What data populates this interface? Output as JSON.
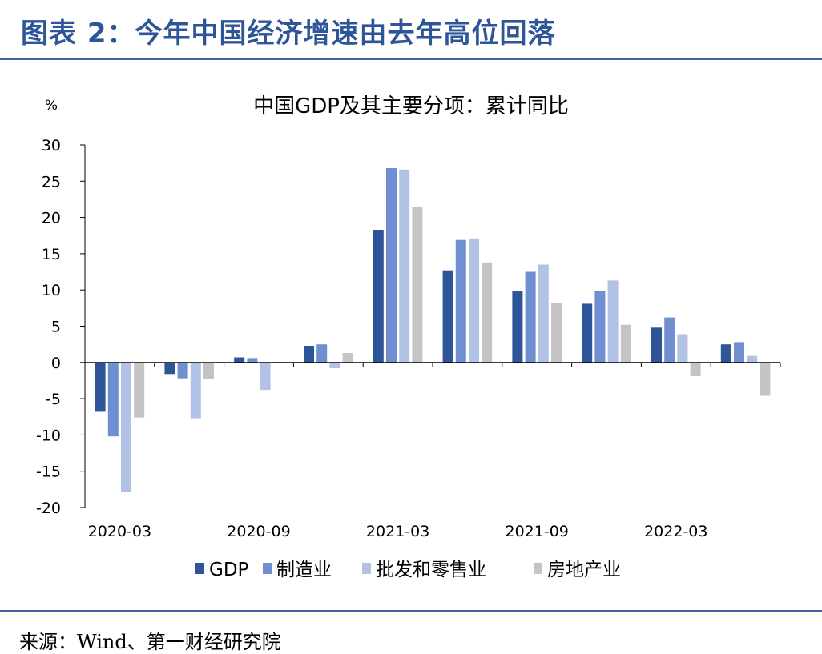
{
  "header": {
    "figure_title": "图表 2：今年中国经济增速由去年高位回落"
  },
  "footer": {
    "source": "来源：Wind、第一财经研究院"
  },
  "chart_data": {
    "type": "bar",
    "title": "中国GDP及其主要分项：累计同比",
    "ylabel": "%",
    "xlabel": "",
    "ylim": [
      -20,
      30
    ],
    "yticks": [
      30,
      25,
      20,
      15,
      10,
      5,
      0,
      -5,
      -10,
      -15,
      -20
    ],
    "grid": false,
    "legend_position": "bottom",
    "categories": [
      "2020-03",
      "2020-06",
      "2020-09",
      "2020-12",
      "2021-03",
      "2021-06",
      "2021-09",
      "2021-12",
      "2022-03",
      "2022-06"
    ],
    "x_tick_labels": [
      "2020-03",
      "2020-09",
      "2021-03",
      "2021-09",
      "2022-03"
    ],
    "series": [
      {
        "name": "GDP",
        "color": "#2e5597",
        "values": [
          -6.8,
          -1.6,
          0.7,
          2.3,
          18.3,
          12.7,
          9.8,
          8.1,
          4.8,
          2.5
        ]
      },
      {
        "name": "制造业",
        "color": "#6f8fd2",
        "values": [
          -10.2,
          -2.2,
          0.6,
          2.5,
          26.8,
          16.9,
          12.5,
          9.8,
          6.2,
          2.8
        ]
      },
      {
        "name": "批发和零售业",
        "color": "#b2c2e4",
        "values": [
          -17.8,
          -7.7,
          -3.8,
          -0.8,
          26.6,
          17.1,
          13.5,
          11.3,
          3.9,
          0.9
        ]
      },
      {
        "name": "房地产业",
        "color": "#c4c4c4",
        "values": [
          -7.6,
          -2.3,
          0.0,
          1.3,
          21.4,
          13.8,
          8.2,
          5.2,
          -1.9,
          -4.6
        ]
      }
    ]
  }
}
